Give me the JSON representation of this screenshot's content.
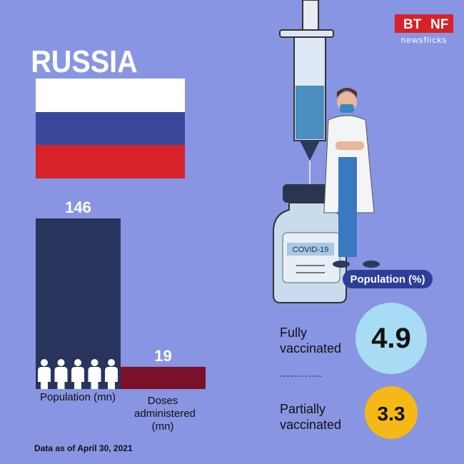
{
  "title": "RUSSIA",
  "logo": {
    "left": "BT",
    "right": "NF",
    "tagline": "newsflicks"
  },
  "chart_data": {
    "type": "bar",
    "categories": [
      "Population (mn)",
      "Doses administered (mn)"
    ],
    "values": [
      146,
      19
    ],
    "colors": [
      "#27345c",
      "#7a1029"
    ]
  },
  "vial_label": "COVID-19",
  "vaccination": {
    "heading": "Population (%)",
    "items": [
      {
        "label": "Fully vaccinated",
        "value": 4.9,
        "color": "#a8dcf5"
      },
      {
        "label": "Partially vaccinated",
        "value": 3.3,
        "color": "#f5b816"
      }
    ]
  },
  "footnote": "Data as of April 30, 2021"
}
